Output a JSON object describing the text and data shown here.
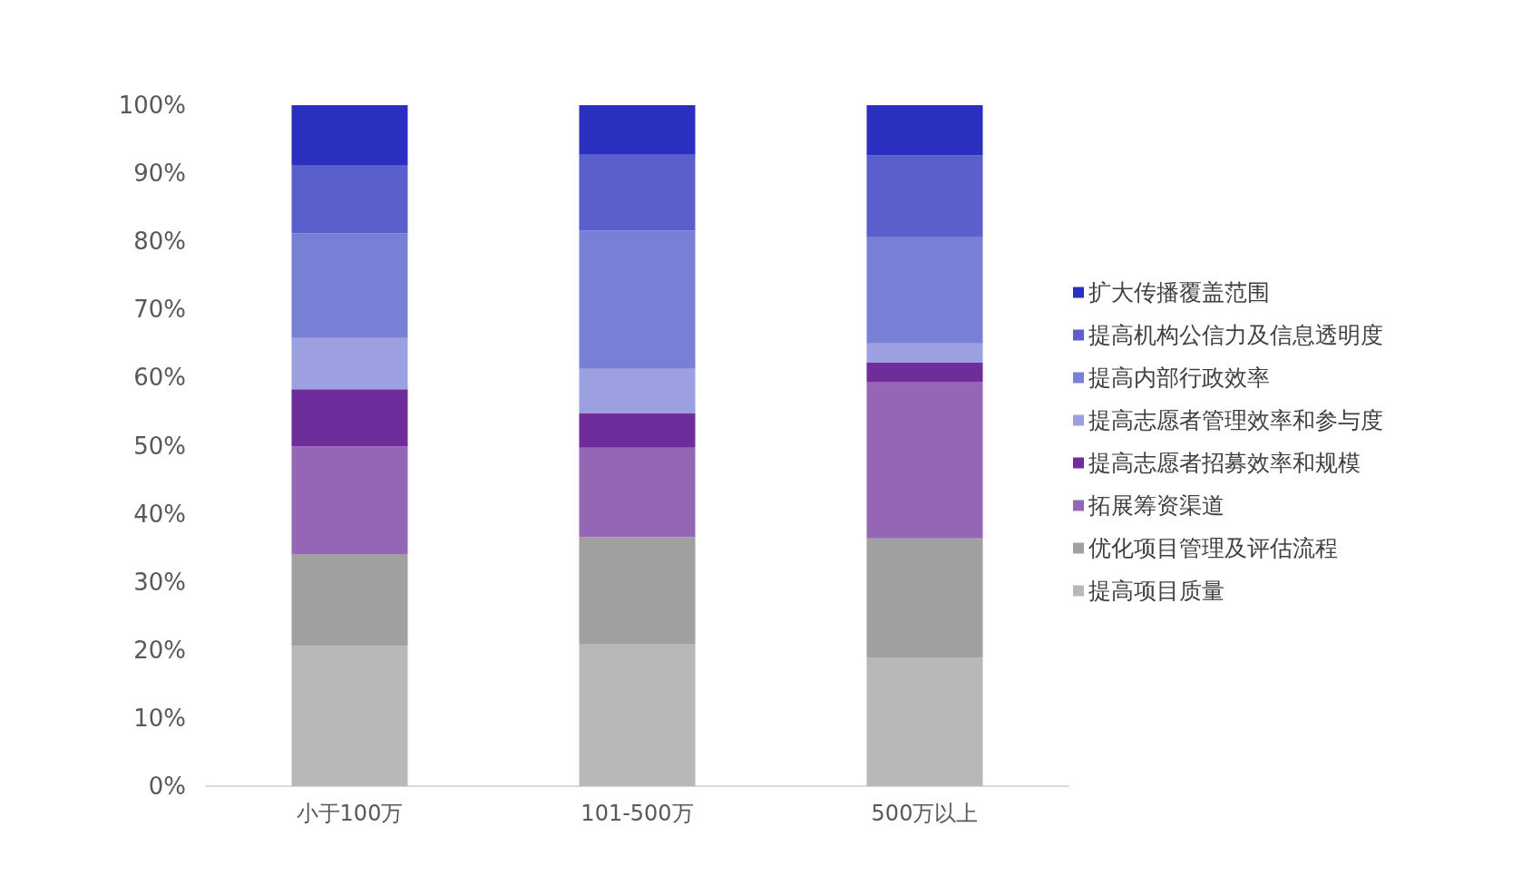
{
  "chart_data": {
    "type": "bar",
    "stacked": true,
    "categories": [
      "小于100万",
      "101-500万",
      "500万以上"
    ],
    "series": [
      {
        "name": "提高项目质量",
        "color": "#b8b8b8",
        "values": [
          20.6,
          20.9,
          18.9
        ]
      },
      {
        "name": "优化项目管理及评估流程",
        "color": "#a0a0a0",
        "values": [
          13.5,
          15.7,
          17.5
        ]
      },
      {
        "name": "拓展筹资渠道",
        "color": "#9566b6",
        "values": [
          15.8,
          13.1,
          23.0
        ]
      },
      {
        "name": "提高志愿者招募效率和规模",
        "color": "#6f2d9b",
        "values": [
          8.4,
          5.1,
          2.8
        ]
      },
      {
        "name": "提高志愿者管理效率和参与度",
        "color": "#9ca0e0",
        "values": [
          7.5,
          6.5,
          2.8
        ]
      },
      {
        "name": "提高内部行政效率",
        "color": "#7880d6",
        "values": [
          15.4,
          20.3,
          15.7
        ]
      },
      {
        "name": "提高机构公信力及信息透明度",
        "color": "#5a5fcc",
        "values": [
          10.0,
          11.2,
          11.9
        ]
      },
      {
        "name": "扩大传播覆盖范围",
        "color": "#2a2fbf",
        "values": [
          8.8,
          7.2,
          7.4
        ]
      }
    ],
    "ylim": [
      0,
      100
    ],
    "yticks": [
      {
        "value": 0,
        "label": "0%"
      },
      {
        "value": 10,
        "label": "10%"
      },
      {
        "value": 20,
        "label": "20%"
      },
      {
        "value": 30,
        "label": "30%"
      },
      {
        "value": 40,
        "label": "40%"
      },
      {
        "value": 50,
        "label": "50%"
      },
      {
        "value": 60,
        "label": "60%"
      },
      {
        "value": 70,
        "label": "70%"
      },
      {
        "value": 80,
        "label": "80%"
      },
      {
        "value": 90,
        "label": "90%"
      },
      {
        "value": 100,
        "label": "100%"
      }
    ],
    "grid": false,
    "legend": "right"
  }
}
